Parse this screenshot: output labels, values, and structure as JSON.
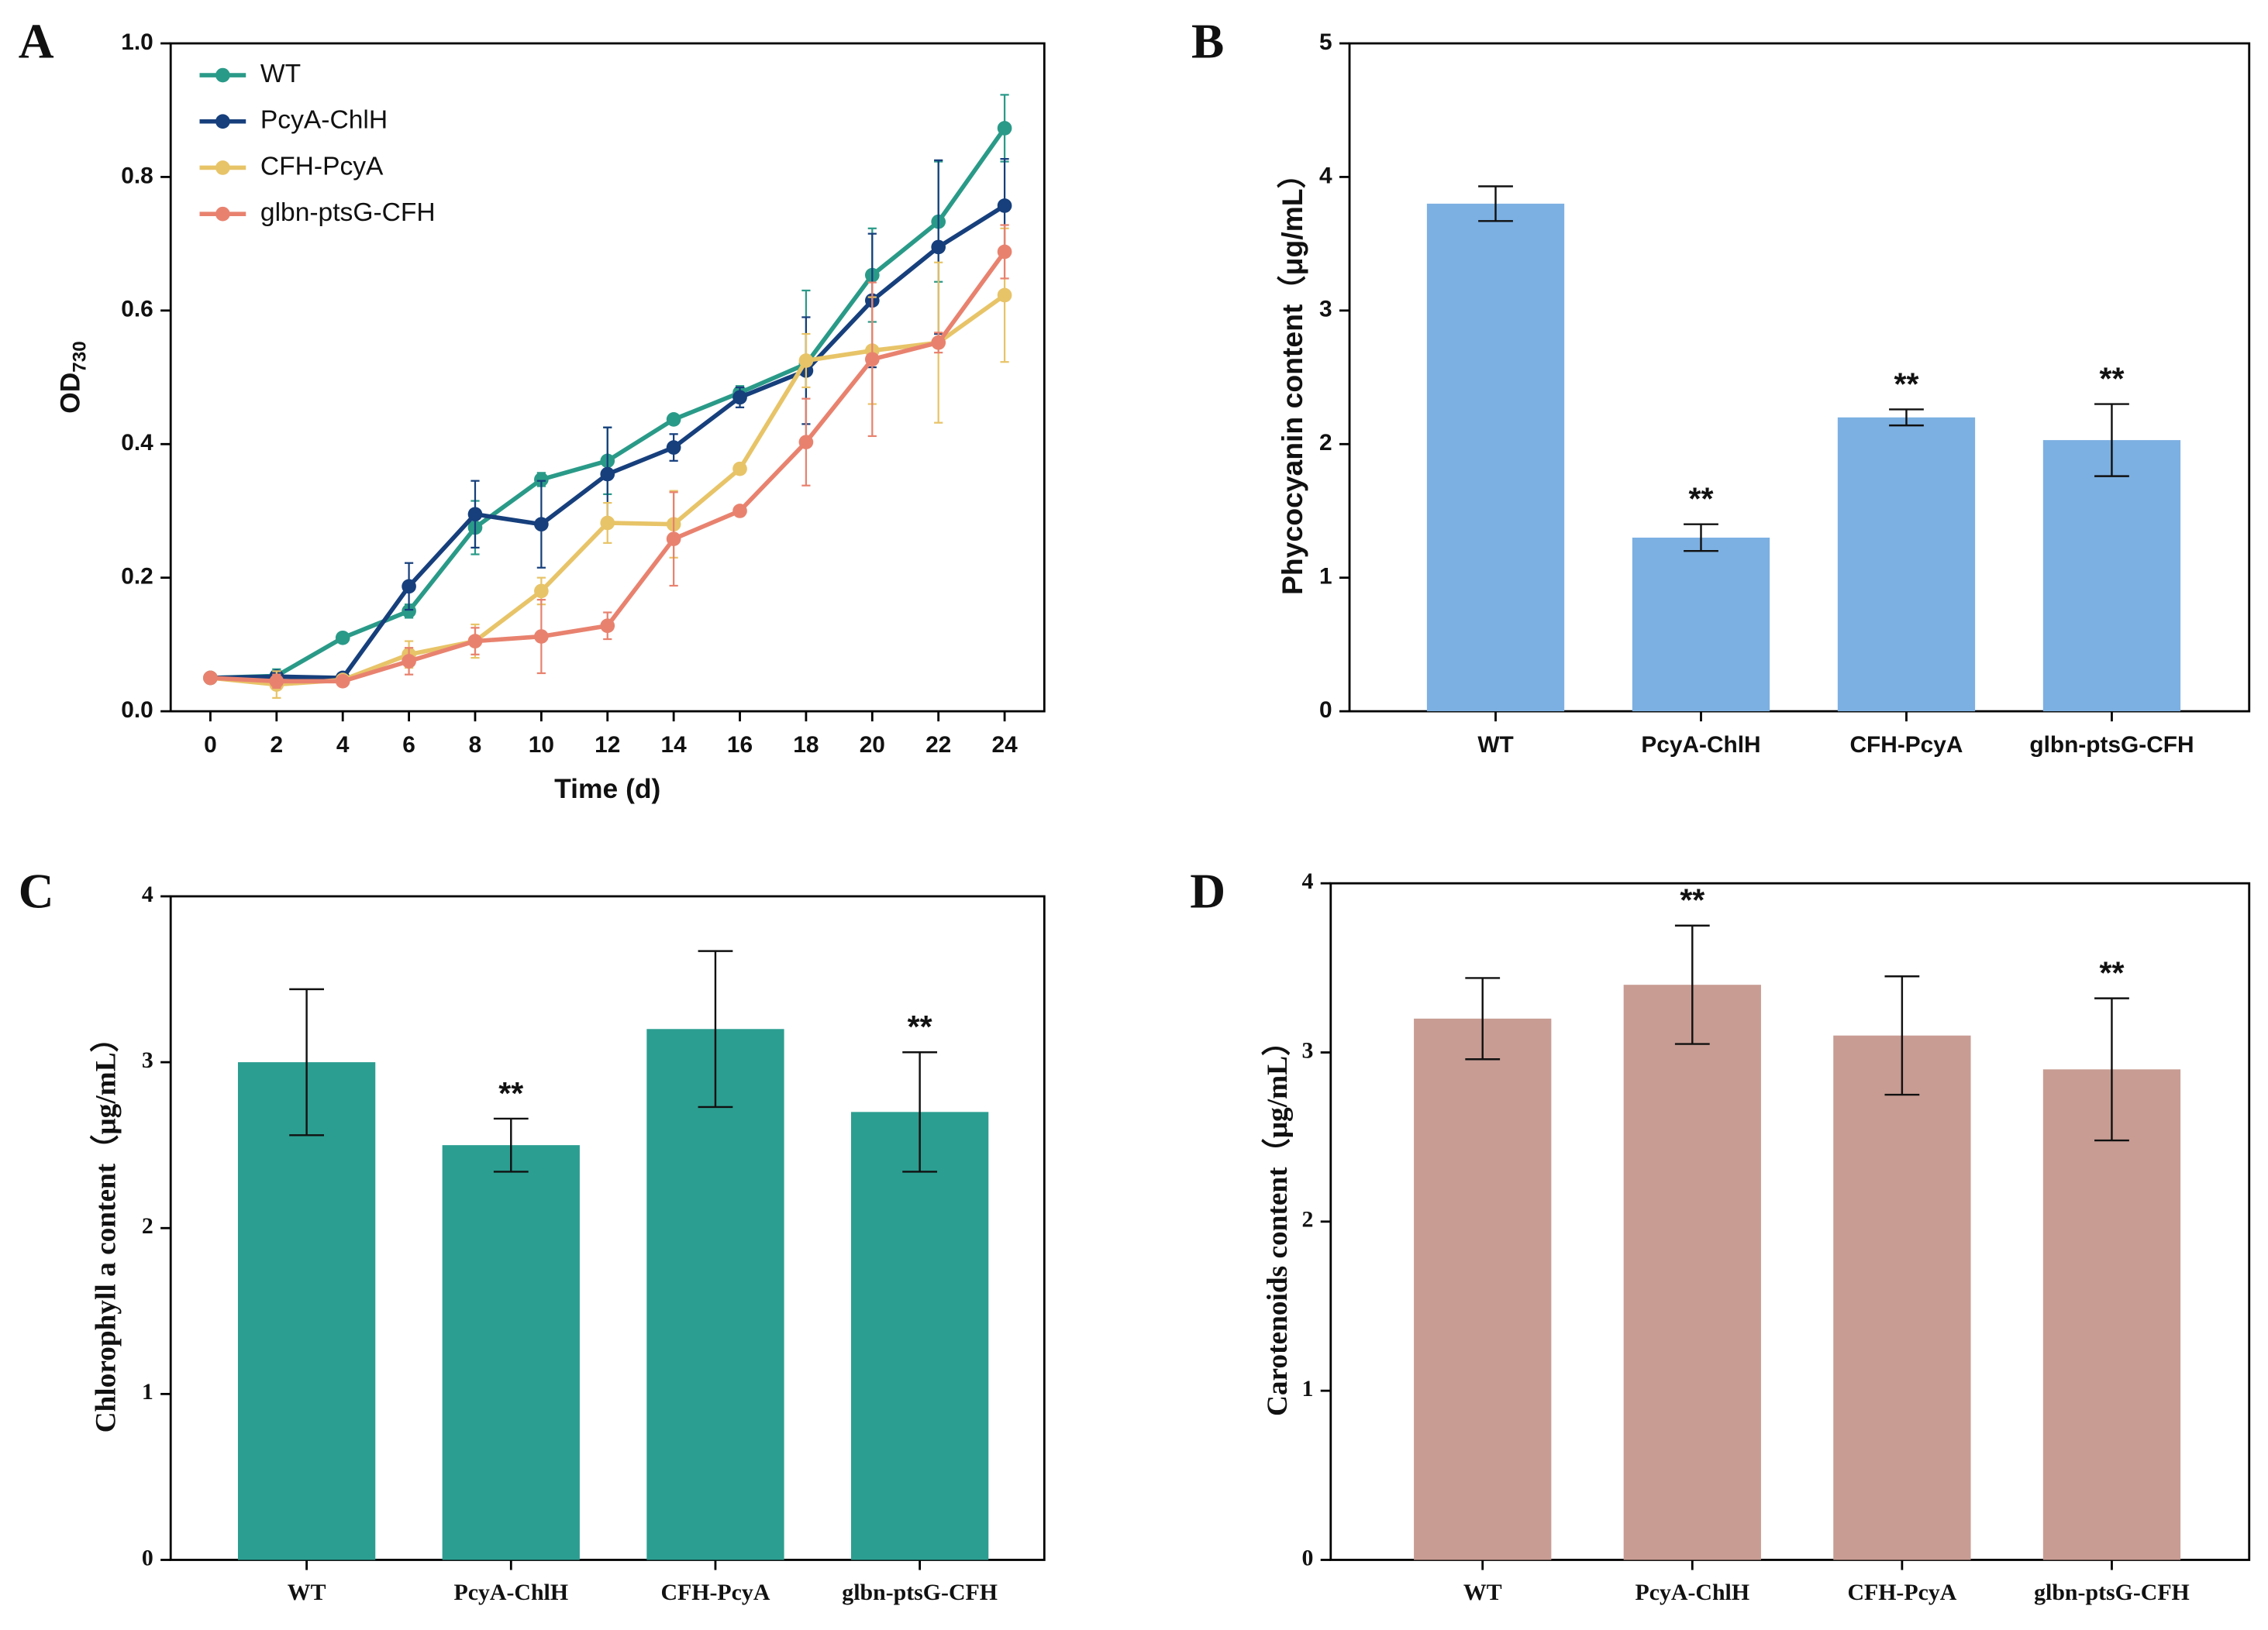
{
  "chart_data": [
    {
      "type": "line",
      "panel_label": "A",
      "xlabel": "Time (d)",
      "ylabel": {
        "text": "OD",
        "subscript": "730"
      },
      "x": [
        0,
        2,
        4,
        6,
        8,
        10,
        12,
        14,
        16,
        18,
        20,
        22,
        24
      ],
      "xlim": [
        -1.2,
        25.2
      ],
      "xticks": [
        0,
        2,
        4,
        6,
        8,
        10,
        12,
        14,
        16,
        18,
        20,
        22,
        24
      ],
      "ylim": [
        0,
        1
      ],
      "yticks": [
        {
          "value": 0,
          "label": "0.0"
        },
        0.2,
        0.4,
        0.6,
        0.8,
        {
          "value": 1,
          "label": "1.0"
        }
      ],
      "series": [
        {
          "name": "WT",
          "color": "#2a9a88",
          "values": [
            0.05,
            0.053,
            0.11,
            0.15,
            0.275,
            0.347,
            0.375,
            0.437,
            0.477,
            0.52,
            0.653,
            0.733,
            0.873
          ],
          "errors": [
            0.005,
            0.01,
            0.005,
            0.01,
            0.04,
            0.01,
            0.05,
            0.005,
            0.01,
            0.11,
            0.07,
            0.09,
            0.05
          ]
        },
        {
          "name": "PcyA-ChlH",
          "color": "#163f7c",
          "values": [
            0.05,
            0.052,
            0.05,
            0.187,
            0.295,
            0.28,
            0.355,
            0.395,
            0.47,
            0.51,
            0.615,
            0.695,
            0.757
          ],
          "errors": [
            0.005,
            0.005,
            0.005,
            0.035,
            0.05,
            0.065,
            0.07,
            0.02,
            0.015,
            0.08,
            0.1,
            0.13,
            0.07
          ]
        },
        {
          "name": "CFH-PcyA",
          "color": "#e8c468",
          "values": [
            0.05,
            0.04,
            0.047,
            0.085,
            0.105,
            0.18,
            0.282,
            0.28,
            0.363,
            0.525,
            0.54,
            0.552,
            0.623
          ],
          "errors": [
            0.005,
            0.02,
            0.005,
            0.02,
            0.025,
            0.02,
            0.03,
            0.05,
            0.005,
            0.04,
            0.08,
            0.12,
            0.1
          ]
        },
        {
          "name": "glbn-ptsG-CFH",
          "color": "#e8826f",
          "values": [
            0.05,
            0.045,
            0.045,
            0.075,
            0.105,
            0.112,
            0.128,
            0.258,
            0.3,
            0.403,
            0.527,
            0.552,
            0.688
          ],
          "errors": [
            0.005,
            0.01,
            0.005,
            0.02,
            0.02,
            0.055,
            0.02,
            0.07,
            0.005,
            0.065,
            0.115,
            0.015,
            0.04
          ]
        }
      ]
    },
    {
      "type": "bar",
      "panel_label": "B",
      "ylabel": "Phycocyanin content（μg/mL）",
      "categories": [
        "WT",
        "PcyA-ChlH",
        "CFH-PcyA",
        "glbn-ptsG-CFH"
      ],
      "values": [
        3.8,
        1.3,
        2.2,
        2.03
      ],
      "errors": [
        0.13,
        0.1,
        0.06,
        0.27
      ],
      "significance": [
        null,
        "**",
        "**",
        "**"
      ],
      "color": "#7cb0e2",
      "ylim": [
        0,
        5
      ],
      "yticks": [
        0,
        1,
        2,
        3,
        4,
        5
      ]
    },
    {
      "type": "bar",
      "panel_label": "C",
      "ylabel": "Chlorophyll a content（μg/mL）",
      "categories": [
        "WT",
        "PcyA-ChlH",
        "CFH-PcyA",
        "glbn-ptsG-CFH"
      ],
      "values": [
        3.0,
        2.5,
        3.2,
        2.7
      ],
      "errors": [
        0.44,
        0.16,
        0.47,
        0.36
      ],
      "significance": [
        null,
        "**",
        null,
        "**"
      ],
      "color": "#2b9e91",
      "ylim": [
        0,
        4
      ],
      "yticks": [
        0,
        1,
        2,
        3,
        4
      ]
    },
    {
      "type": "bar",
      "panel_label": "D",
      "ylabel": "Carotenoids content（μg/mL）",
      "categories": [
        "WT",
        "PcyA-ChlH",
        "CFH-PcyA",
        "glbn-ptsG-CFH"
      ],
      "values": [
        3.2,
        3.4,
        3.1,
        2.9
      ],
      "errors": [
        0.24,
        0.35,
        0.35,
        0.42
      ],
      "significance": [
        null,
        "**",
        null,
        "**"
      ],
      "color": "#c89c93",
      "ylim": [
        0,
        4
      ],
      "yticks": [
        0,
        1,
        2,
        3,
        4
      ]
    }
  ]
}
